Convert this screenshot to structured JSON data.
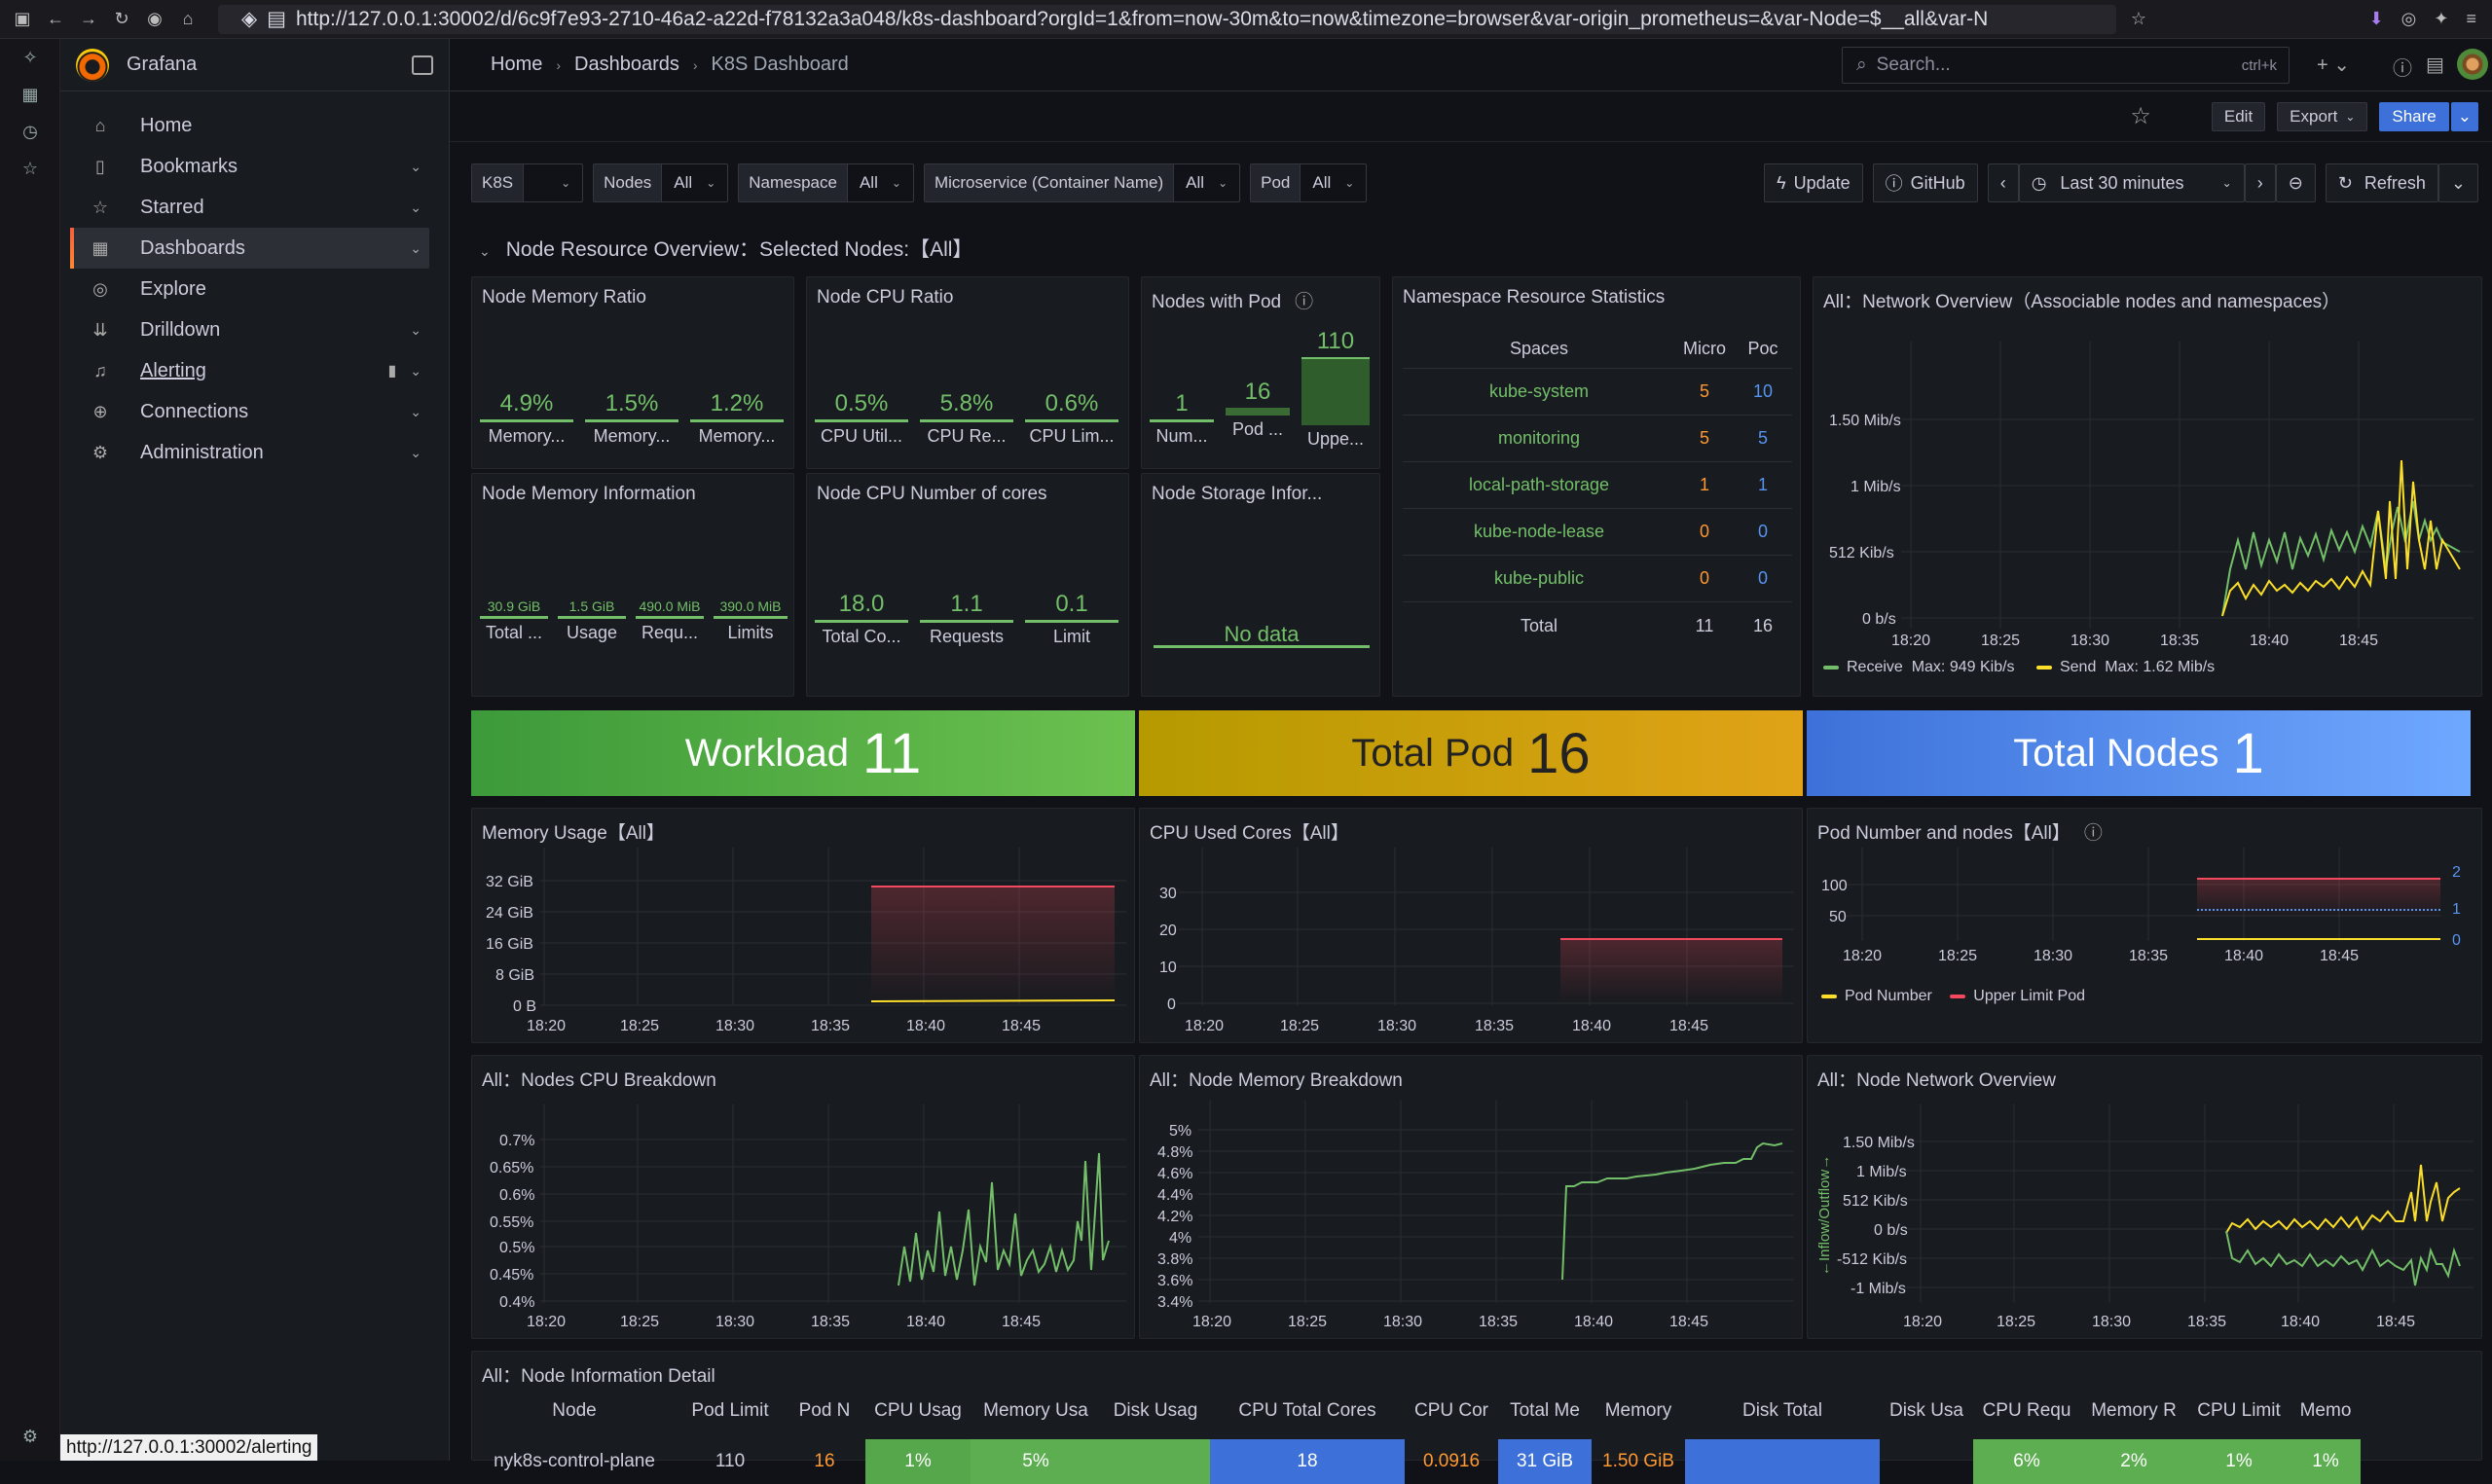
{
  "browser": {
    "url": "http://127.0.0.1:30002/d/6c9f7e93-2710-46a2-a22d-f78132a3a048/k8s-dashboard?orgId=1&from=now-30m&to=now&timezone=browser&var-origin_prometheus=&var-Node=$__all&var-N",
    "status_url": "http://127.0.0.1:30002/alerting"
  },
  "nav": {
    "title": "Grafana",
    "items": [
      {
        "label": "Home",
        "icon": "home-icon"
      },
      {
        "label": "Bookmarks",
        "icon": "bookmark-icon"
      },
      {
        "label": "Starred",
        "icon": "star-icon"
      },
      {
        "label": "Dashboards",
        "icon": "dashboards-icon"
      },
      {
        "label": "Explore",
        "icon": "compass-icon"
      },
      {
        "label": "Drilldown",
        "icon": "drilldown-icon"
      },
      {
        "label": "Alerting",
        "icon": "bell-icon"
      },
      {
        "label": "Connections",
        "icon": "connections-icon"
      },
      {
        "label": "Administration",
        "icon": "gear-icon"
      }
    ]
  },
  "breadcrumb": [
    "Home",
    "Dashboards",
    "K8S Dashboard"
  ],
  "search": {
    "placeholder": "Search...",
    "shortcut": "ctrl+k"
  },
  "actions": {
    "edit": "Edit",
    "export": "Export",
    "share": "Share"
  },
  "variables": [
    {
      "label": "K8S",
      "value": ""
    },
    {
      "label": "Nodes",
      "value": "All"
    },
    {
      "label": "Namespace",
      "value": "All"
    },
    {
      "label": "Microservice (Container Name)",
      "value": "All"
    },
    {
      "label": "Pod",
      "value": "All"
    }
  ],
  "controls": {
    "update": "Update",
    "github": "GitHub",
    "time_range": "Last 30 minutes",
    "refresh": "Refresh"
  },
  "row_title": "Node Resource Overview：Selected Nodes:【All】",
  "panels": {
    "mem_ratio": {
      "title": "Node Memory Ratio",
      "stats": [
        {
          "v": "4.9%",
          "l": "Memory..."
        },
        {
          "v": "1.5%",
          "l": "Memory..."
        },
        {
          "v": "1.2%",
          "l": "Memory..."
        }
      ]
    },
    "cpu_ratio": {
      "title": "Node CPU Ratio",
      "stats": [
        {
          "v": "0.5%",
          "l": "CPU Util..."
        },
        {
          "v": "5.8%",
          "l": "CPU Re..."
        },
        {
          "v": "0.6%",
          "l": "CPU Lim..."
        }
      ]
    },
    "nodes_pod": {
      "title": "Nodes with Pod",
      "stats": [
        {
          "v": "1",
          "l": "Num..."
        },
        {
          "v": "16",
          "l": "Pod ..."
        },
        {
          "v": "110",
          "l": "Uppe..."
        }
      ]
    },
    "ns_stats": {
      "title": "Namespace Resource Statistics",
      "headers": [
        "Spaces",
        "Micro",
        "Poc"
      ],
      "rows": [
        [
          "kube-system",
          "5",
          "10"
        ],
        [
          "monitoring",
          "5",
          "5"
        ],
        [
          "local-path-storage",
          "1",
          "1"
        ],
        [
          "kube-node-lease",
          "0",
          "0"
        ],
        [
          "kube-public",
          "0",
          "0"
        ]
      ],
      "total": [
        "Total",
        "11",
        "16"
      ]
    },
    "net_overview": {
      "title": "All：Network Overview（Associable nodes and namespaces）",
      "legend": [
        {
          "name": "Receive",
          "max": "Max: 949 Kib/s"
        },
        {
          "name": "Send",
          "max": "Max: 1.62 Mib/s"
        }
      ]
    },
    "mem_info": {
      "title": "Node Memory Information",
      "stats": [
        {
          "v": "30.9 GiB",
          "l": "Total ..."
        },
        {
          "v": "1.5 GiB",
          "l": "Usage"
        },
        {
          "v": "490.0 MiB",
          "l": "Requ..."
        },
        {
          "v": "390.0 MiB",
          "l": "Limits"
        }
      ]
    },
    "cpu_cores": {
      "title": "Node CPU Number of cores",
      "stats": [
        {
          "v": "18.0",
          "l": "Total Co..."
        },
        {
          "v": "1.1",
          "l": "Requests"
        },
        {
          "v": "0.1",
          "l": "Limit"
        }
      ]
    },
    "storage": {
      "title": "Node Storage Infor...",
      "nodata": "No data"
    },
    "workload": {
      "label": "Workload",
      "value": "11"
    },
    "total_pod": {
      "label": "Total Pod",
      "value": "16"
    },
    "total_nodes": {
      "label": "Total Nodes",
      "value": "1"
    },
    "mem_usage": {
      "title": "Memory Usage【All】"
    },
    "cpu_used": {
      "title": "CPU Used Cores【All】"
    },
    "pod_nodes": {
      "title": "Pod Number and nodes【All】",
      "legend": [
        "Pod Number",
        "Upper Limit Pod"
      ]
    },
    "cpu_breakdown": {
      "title": "All：Nodes CPU Breakdown"
    },
    "mem_breakdown": {
      "title": "All：Node Memory Breakdown"
    },
    "net_node": {
      "title": "All：Node Network Overview",
      "ylabel": "←Inflow/Outflow→"
    },
    "detail": {
      "title": "All：Node Information Detail",
      "headers": [
        "Node",
        "Pod Limit",
        "Pod N",
        "CPU Usag",
        "Memory Usa",
        "Disk Usag",
        "CPU Total Cores",
        "CPU Cor",
        "Total Me",
        "Memory",
        "Disk Total",
        "Disk Usa",
        "CPU Requ",
        "Memory R",
        "CPU Limit",
        "Memo"
      ],
      "row": [
        "nyk8s-control-plane",
        "110",
        "16",
        "1%",
        "5%",
        "",
        "18",
        "0.0916",
        "31 GiB",
        "1.50 GiB",
        "",
        "",
        "6%",
        "2%",
        "1%",
        "1%"
      ]
    }
  },
  "chart_data": [
    {
      "type": "line",
      "title": "All：Network Overview（Associable nodes and namespaces）",
      "x": [
        "18:20",
        "18:25",
        "18:30",
        "18:35",
        "18:40",
        "18:45"
      ],
      "yticks": [
        "0 b/s",
        "512 Kib/s",
        "1 Mib/s",
        "1.50 Mib/s"
      ],
      "series": [
        {
          "name": "Receive",
          "color": "#73bf69",
          "max": "949 Kib/s"
        },
        {
          "name": "Send",
          "color": "#fade2a",
          "max": "1.62 Mib/s"
        }
      ]
    },
    {
      "type": "line",
      "title": "Memory Usage【All】",
      "x": [
        "18:20",
        "18:25",
        "18:30",
        "18:35",
        "18:40",
        "18:45"
      ],
      "yticks": [
        "0 B",
        "8 GiB",
        "16 GiB",
        "24 GiB",
        "32 GiB"
      ]
    },
    {
      "type": "line",
      "title": "CPU Used Cores【All】",
      "x": [
        "18:20",
        "18:25",
        "18:30",
        "18:35",
        "18:40",
        "18:45"
      ],
      "yticks": [
        "0",
        "10",
        "20",
        "30"
      ]
    },
    {
      "type": "line",
      "title": "Pod Number and nodes【All】",
      "x": [
        "18:20",
        "18:25",
        "18:30",
        "18:35",
        "18:40",
        "18:45"
      ],
      "yticks": [
        "50",
        "100"
      ],
      "yticks_right": [
        "0",
        "1",
        "2"
      ]
    },
    {
      "type": "line",
      "title": "All：Nodes CPU Breakdown",
      "x": [
        "18:20",
        "18:25",
        "18:30",
        "18:35",
        "18:40",
        "18:45"
      ],
      "yticks": [
        "0.4%",
        "0.45%",
        "0.5%",
        "0.55%",
        "0.6%",
        "0.65%",
        "0.7%"
      ]
    },
    {
      "type": "line",
      "title": "All：Node Memory Breakdown",
      "x": [
        "18:20",
        "18:25",
        "18:30",
        "18:35",
        "18:40",
        "18:45"
      ],
      "yticks": [
        "3.4%",
        "3.6%",
        "3.8%",
        "4%",
        "4.2%",
        "4.4%",
        "4.6%",
        "4.8%",
        "5%"
      ]
    },
    {
      "type": "line",
      "title": "All：Node Network Overview",
      "x": [
        "18:20",
        "18:25",
        "18:30",
        "18:35",
        "18:40",
        "18:45"
      ],
      "yticks": [
        "-1 Mib/s",
        "-512 Kib/s",
        "0 b/s",
        "512 Kib/s",
        "1 Mib/s",
        "1.50 Mib/s"
      ]
    }
  ]
}
